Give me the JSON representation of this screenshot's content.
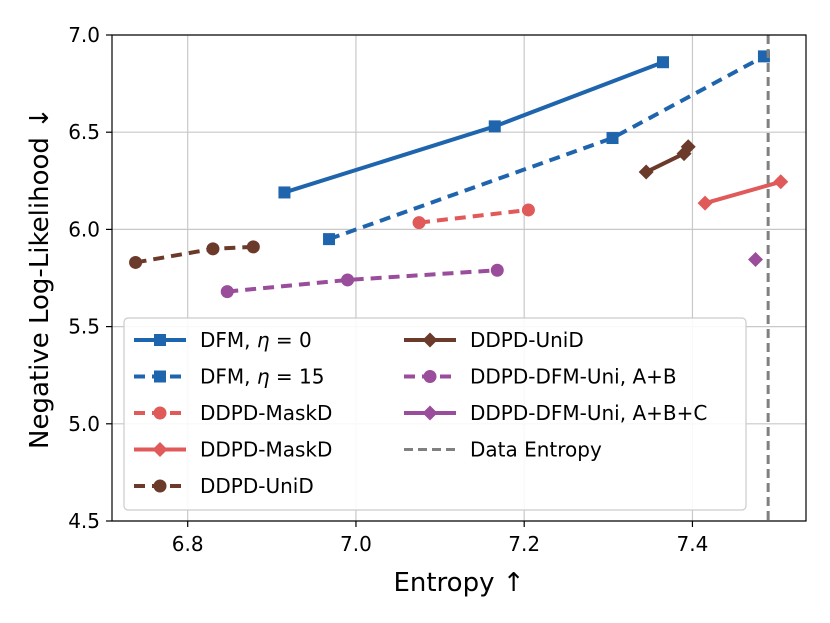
{
  "chart_data": {
    "type": "line",
    "title": "",
    "xlabel": "Entropy ↑",
    "ylabel": "Negative Log-Likelihood ↓",
    "xlim": [
      6.71,
      7.535
    ],
    "ylim": [
      4.5,
      7.0
    ],
    "xticks": [
      6.8,
      7.0,
      7.2,
      7.4
    ],
    "xtick_labels": [
      "6.8",
      "7.0",
      "7.2",
      "7.4"
    ],
    "yticks": [
      4.5,
      5.0,
      5.5,
      6.0,
      6.5,
      7.0
    ],
    "ytick_labels": [
      "4.5",
      "5.0",
      "5.5",
      "6.0",
      "6.5",
      "7.0"
    ],
    "grid": true,
    "legend_position": "lower-left",
    "series": [
      {
        "name": "DFM, η = 0",
        "label_prefix": "DFM, ",
        "label_symbol": "η",
        "label_suffix": " = 0",
        "color": "#1f65ad",
        "dash": "solid",
        "marker": "square",
        "points": [
          [
            6.915,
            6.19
          ],
          [
            7.165,
            6.53
          ],
          [
            7.365,
            6.86
          ]
        ]
      },
      {
        "name": "DFM, η = 15",
        "label_prefix": "DFM, ",
        "label_symbol": "η",
        "label_suffix": " = 15",
        "color": "#1f65ad",
        "dash": "dashed",
        "marker": "square",
        "points": [
          [
            6.968,
            5.95
          ],
          [
            7.305,
            6.47
          ],
          [
            7.485,
            6.89
          ]
        ]
      },
      {
        "name": "DDPD-MaskD",
        "color": "#e05a5a",
        "dash": "dashed",
        "marker": "circle",
        "points": [
          [
            7.075,
            6.035
          ],
          [
            7.205,
            6.1
          ]
        ]
      },
      {
        "name": "DDPD-MaskD",
        "color": "#e05a5a",
        "dash": "solid",
        "marker": "diamond",
        "points": [
          [
            7.415,
            6.135
          ],
          [
            7.505,
            6.245
          ]
        ]
      },
      {
        "name": "DDPD-UniD",
        "color": "#6b3a2a",
        "dash": "dashed",
        "marker": "circle",
        "points": [
          [
            6.738,
            5.83
          ],
          [
            6.83,
            5.9
          ],
          [
            6.878,
            5.91
          ]
        ]
      },
      {
        "name": "DDPD-UniD",
        "color": "#6b3a2a",
        "dash": "solid",
        "marker": "diamond",
        "points": [
          [
            7.345,
            6.295
          ],
          [
            7.39,
            6.39
          ],
          [
            7.395,
            6.425
          ]
        ]
      },
      {
        "name": "DDPD-DFM-Uni, A+B",
        "color": "#9a4d9a",
        "dash": "dashed",
        "marker": "circle",
        "points": [
          [
            6.847,
            5.68
          ],
          [
            6.99,
            5.74
          ],
          [
            7.168,
            5.79
          ]
        ]
      },
      {
        "name": "DDPD-DFM-Uni, A+B+C",
        "color": "#9a4d9a",
        "dash": "solid",
        "marker": "diamond",
        "points": [
          [
            7.475,
            5.845
          ]
        ]
      },
      {
        "name": "Data Entropy",
        "color": "#808080",
        "dash": "dashed",
        "marker": "none",
        "vline_x": 7.49
      }
    ]
  }
}
